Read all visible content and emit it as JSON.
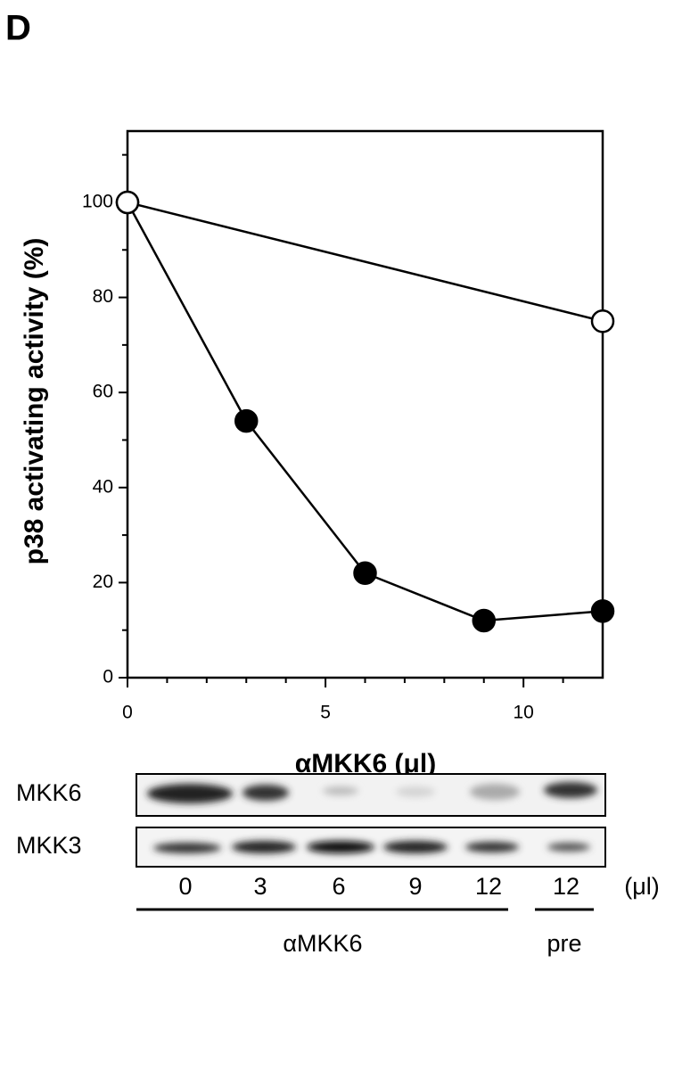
{
  "panel_label": "D",
  "chart_data": {
    "type": "line",
    "xlabel": "αMKK6 (μl)",
    "ylabel": "p38 activating activity (%)",
    "xlim": [
      0,
      12
    ],
    "xticks": [
      0,
      5,
      10
    ],
    "x_minor_ticks": [
      1,
      2,
      3,
      4,
      6,
      7,
      8,
      9,
      11
    ],
    "ylim": [
      0,
      115
    ],
    "yticks": [
      0,
      20,
      40,
      60,
      80,
      100
    ],
    "y_minor_ticks": [
      10,
      30,
      50,
      70,
      90,
      110
    ],
    "series": [
      {
        "color": "#000000",
        "marker": "filled",
        "x": [
          0,
          3,
          6,
          9,
          12
        ],
        "values": [
          100,
          54,
          22,
          12,
          14
        ]
      },
      {
        "color": "#000000",
        "marker": "open",
        "x": [
          0,
          12
        ],
        "values": [
          100,
          75
        ]
      }
    ]
  },
  "blot": {
    "rows": [
      "MKK6",
      "MKK3"
    ],
    "lanes": [
      "0",
      "3",
      "6",
      "9",
      "12",
      "12"
    ],
    "unit": "(μl)",
    "groups": [
      "αMKK6",
      "pre"
    ]
  }
}
